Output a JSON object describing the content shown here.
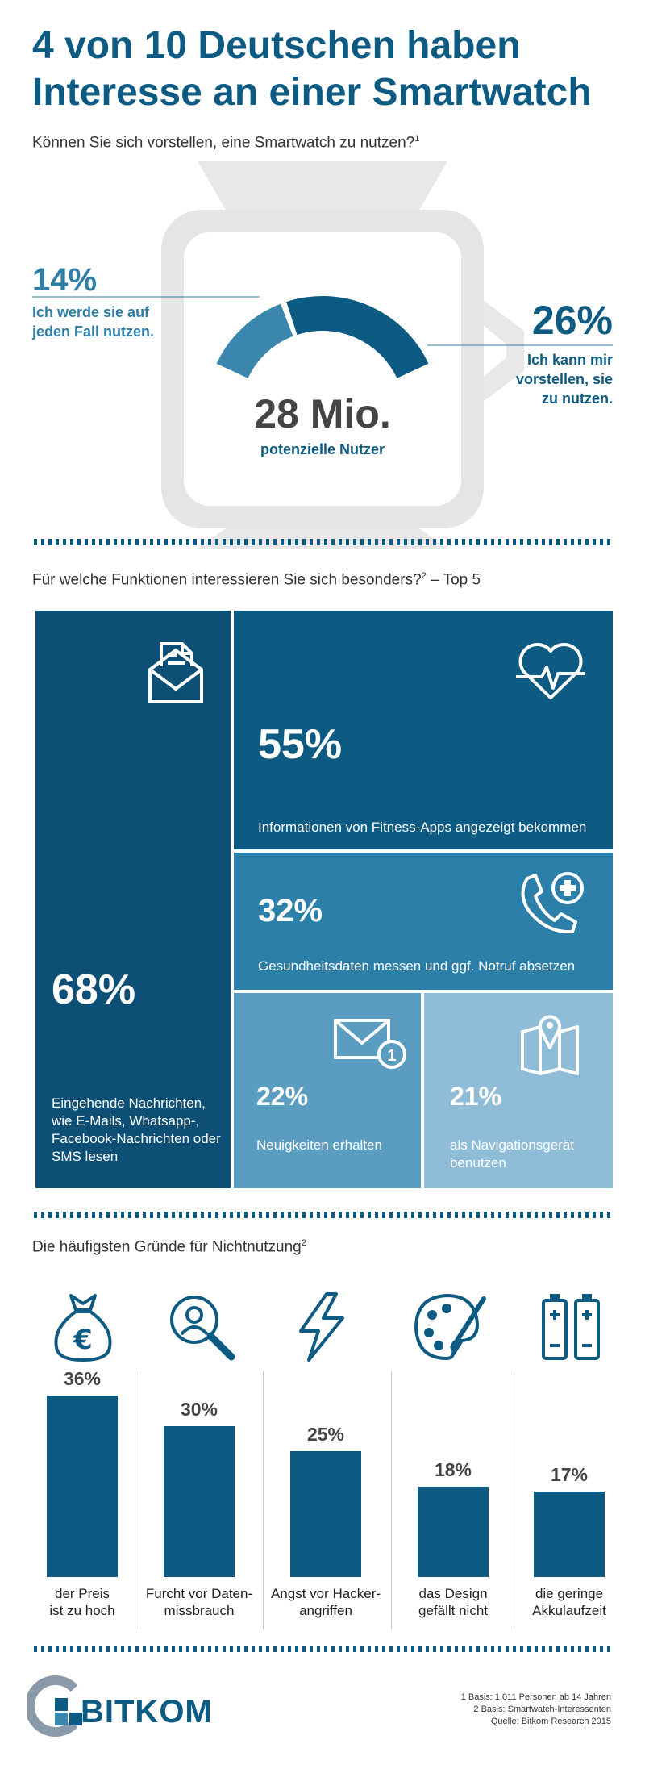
{
  "title_line1": "4 von 10 Deutschen haben",
  "title_line2": "Interesse an einer Smartwatch",
  "question1": "Können Sie sich vorstellen, eine Smartwatch zu nutzen?",
  "question1_sup": "1",
  "watch": {
    "left_pct": "14%",
    "left_label_1": "Ich werde sie auf",
    "left_label_2": "jeden Fall nutzen.",
    "right_pct": "26%",
    "right_label_1": "Ich kann mir",
    "right_label_2": "vorstellen, sie",
    "right_label_3": "zu nutzen.",
    "center_value": "28 Mio.",
    "center_label": "potenzielle Nutzer"
  },
  "question2": "Für welche Funktionen interessieren Sie sich besonders?",
  "question2_sup": "2",
  "question2_suffix": " – Top 5",
  "functions": [
    {
      "pct": "68%",
      "label_lines": [
        "Eingehende Nachrichten,",
        "wie E-Mails, Whatsapp-,",
        "Facebook-Nachrichten oder",
        "SMS lesen"
      ],
      "icon": "mail-document-icon",
      "color": "#0d4f75"
    },
    {
      "pct": "55%",
      "label_lines": [
        "Informationen von Fitness-Apps angezeigt bekommen"
      ],
      "icon": "heart-pulse-icon",
      "color": "#0d5a82"
    },
    {
      "pct": "32%",
      "label_lines": [
        "Gesundheitsdaten messen und ggf. Notruf absetzen"
      ],
      "icon": "phone-medical-icon",
      "color": "#2b7fa8"
    },
    {
      "pct": "22%",
      "label_lines": [
        "Neuigkeiten erhalten"
      ],
      "icon": "envelope-notification-icon",
      "color": "#5b9dc0"
    },
    {
      "pct": "21%",
      "label_lines": [
        "als Navigationsgerät",
        "benutzen"
      ],
      "icon": "map-pin-icon",
      "color": "#8fbcd7"
    }
  ],
  "question3": "Die häufigsten Gründe für Nichtnutzung",
  "question3_sup": "2",
  "chart_data": {
    "type": "bar",
    "categories": [
      "der Preis ist zu hoch",
      "Furcht vor Datenmissbrauch",
      "Angst vor Hackerangriffen",
      "das Design gefällt nicht",
      "die geringe Akkulaufzeit"
    ],
    "values": [
      36,
      30,
      25,
      18,
      17
    ],
    "value_labels": [
      "36%",
      "30%",
      "25%",
      "18%",
      "17%"
    ],
    "label_lines": [
      [
        "der Preis",
        "ist zu hoch"
      ],
      [
        "Furcht vor Daten-",
        "missbrauch"
      ],
      [
        "Angst vor Hacker-",
        "angriffen"
      ],
      [
        "das Design",
        "gefällt nicht"
      ],
      [
        "die geringe",
        "Akkulaufzeit"
      ]
    ],
    "icons": [
      "money-bag-euro-icon",
      "magnifier-person-icon",
      "lightning-icon",
      "palette-icon",
      "batteries-icon"
    ],
    "ylim": [
      0,
      40
    ],
    "bar_color": "#0d5a82"
  },
  "logo": "BITKOM",
  "footnotes": [
    "1 Basis: 1.011 Personen ab 14 Jahren",
    "2 Basis: Smartwatch-Interessenten",
    "Quelle: Bitkom Research 2015"
  ],
  "colors": {
    "primary": "#0d5a82",
    "accent": "#2e7ea6",
    "strap": "#e8e8e8"
  }
}
